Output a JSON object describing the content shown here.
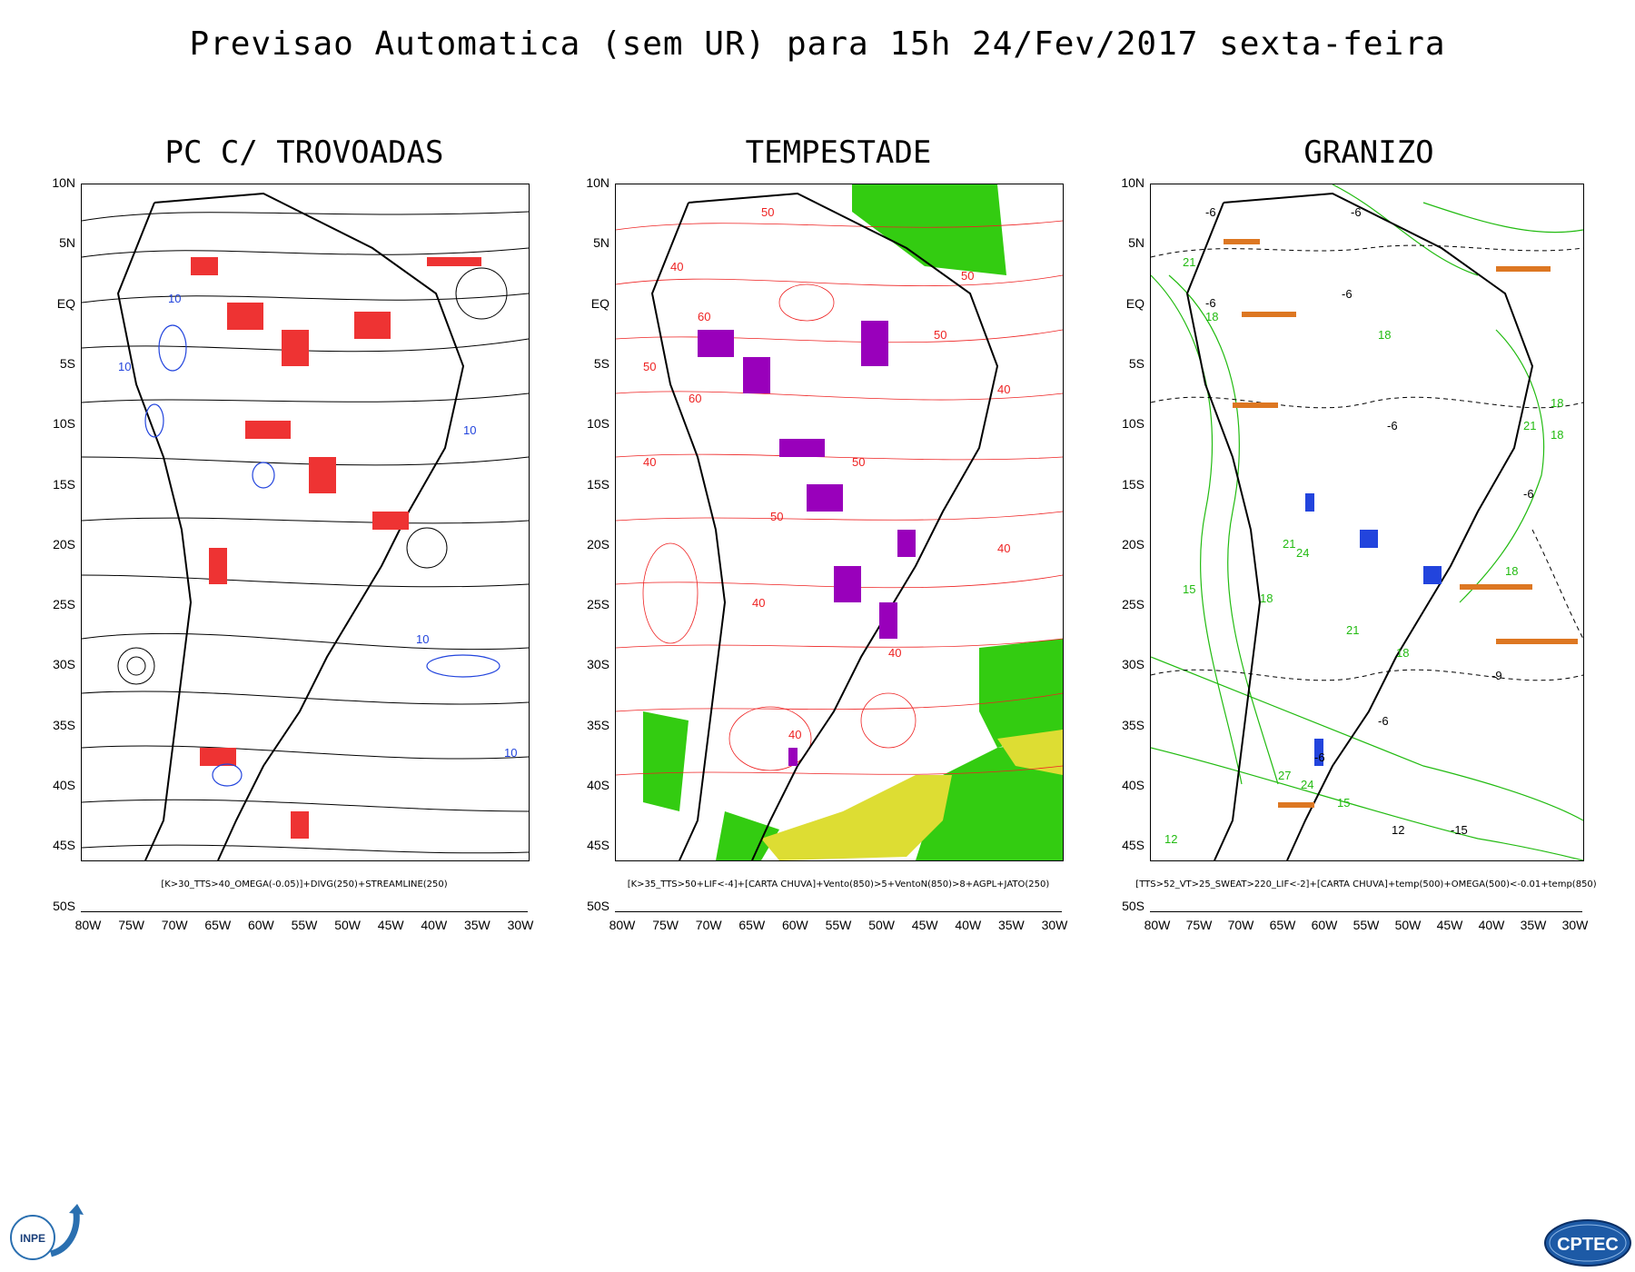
{
  "title": "Previsao Automatica (sem UR) para 15h 24/Fev/2017 sexta-feira",
  "panels": [
    {
      "title": "PC C/ TROVOADAS",
      "caption": "[K>30_TTS>40_OMEGA(-0.05)]+DIVG(250)+STREAMLINE(250)",
      "contour_labels": [
        "10",
        "10",
        "10",
        "10",
        "10"
      ],
      "colors": {
        "stream": "#000000",
        "shade": "#ee3333",
        "contour": "#2244dd"
      }
    },
    {
      "title": "TEMPESTADE",
      "caption": "[K>35_TTS>50+LIF<-4]+[CARTA CHUVA]+Vento(850)>5+VentoN(850)>8+AGPL+JATO(250)",
      "contour_labels": [
        "50",
        "50",
        "40",
        "60",
        "50",
        "60",
        "50",
        "40",
        "50",
        "40",
        "50",
        "40",
        "40",
        "40",
        "40"
      ],
      "colors": {
        "stream": "#ee2222",
        "shade": "#9900bb",
        "green": "#33cc11",
        "yellow": "#dddd33"
      }
    },
    {
      "title": "GRANIZO",
      "caption": "[TTS>52_VT>25_SWEAT>220_LIF<-2]+[CARTA CHUVA]+temp(500)+OMEGA(500)<-0.01+temp(850)",
      "contour_labels": [
        "-6",
        "-6",
        "-6",
        "-6",
        "21",
        "18",
        "18",
        "18",
        "18",
        "21",
        "18",
        "-6",
        "-6",
        "15",
        "18",
        "21",
        "24",
        "21",
        "18",
        "-6",
        "-9",
        "12",
        "-15",
        "-6",
        "27",
        "24",
        "12",
        "15"
      ],
      "colors": {
        "green": "#22bb11",
        "dashed": "#000000",
        "orange": "#dd7722",
        "shade": "#2244dd"
      }
    }
  ],
  "lat_labels": [
    "10N",
    "5N",
    "EQ",
    "5S",
    "10S",
    "15S",
    "20S",
    "25S",
    "30S",
    "35S",
    "40S",
    "45S",
    "50S"
  ],
  "lon_labels": [
    "80W",
    "75W",
    "70W",
    "65W",
    "60W",
    "55W",
    "50W",
    "45W",
    "40W",
    "35W",
    "30W"
  ],
  "logos": {
    "left": "INPE",
    "right": "CPTEC"
  }
}
